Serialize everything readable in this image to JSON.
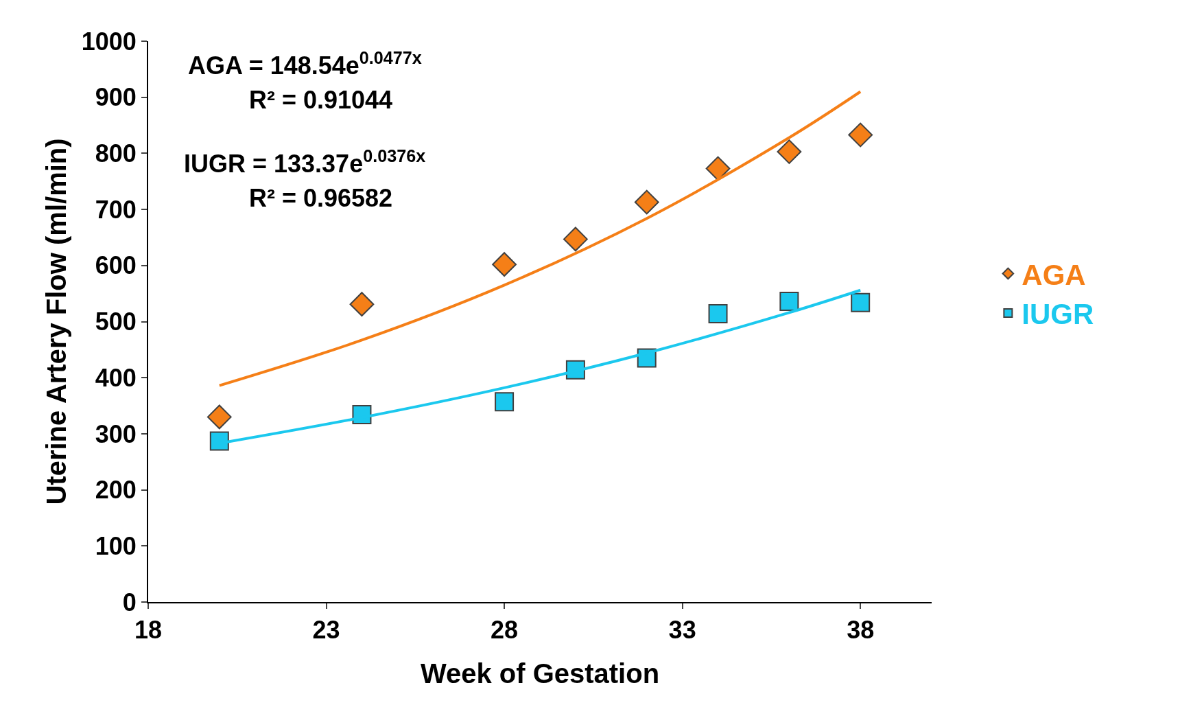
{
  "chart_data": {
    "type": "scatter",
    "xlabel": "Week of Gestation",
    "ylabel": "Uterine Artery Flow (ml/min)",
    "xlim": [
      18,
      40
    ],
    "xticks": [
      18,
      23,
      28,
      33,
      38
    ],
    "ylim": [
      0,
      1000
    ],
    "yticks": [
      0,
      100,
      200,
      300,
      400,
      500,
      600,
      700,
      800,
      900,
      1000
    ],
    "legend": "right",
    "annotations": [
      "AGA = 148.54e$^{0.0477x}$",
      "R² = 0.91044",
      "IUGR = 133.37e$^{0.0376x}$",
      "R² = 0.96582"
    ],
    "series": [
      {
        "name": "AGA",
        "color": "#f57f17",
        "marker": "diamond",
        "x": [
          20,
          24,
          28,
          30,
          32,
          34,
          36,
          38
        ],
        "values": [
          330,
          531,
          602,
          647,
          713,
          773,
          803,
          833
        ]
      },
      {
        "name": "IUGR",
        "color": "#1bc8ee",
        "marker": "square",
        "x": [
          20,
          24,
          28,
          30,
          32,
          34,
          36,
          38
        ],
        "values": [
          287,
          334,
          357,
          414,
          435,
          514,
          536,
          534
        ]
      },
      {
        "type": "line",
        "color": "#f57f17",
        "x": [
          20,
          24,
          28,
          32,
          36,
          38
        ],
        "values": [
          386,
          467,
          565,
          684,
          828,
          910
        ]
      },
      {
        "type": "line",
        "color": "#1bc8ee",
        "x": [
          20,
          24,
          28,
          32,
          36,
          38
        ],
        "values": [
          283,
          329,
          382,
          444,
          516,
          556
        ]
      }
    ]
  }
}
